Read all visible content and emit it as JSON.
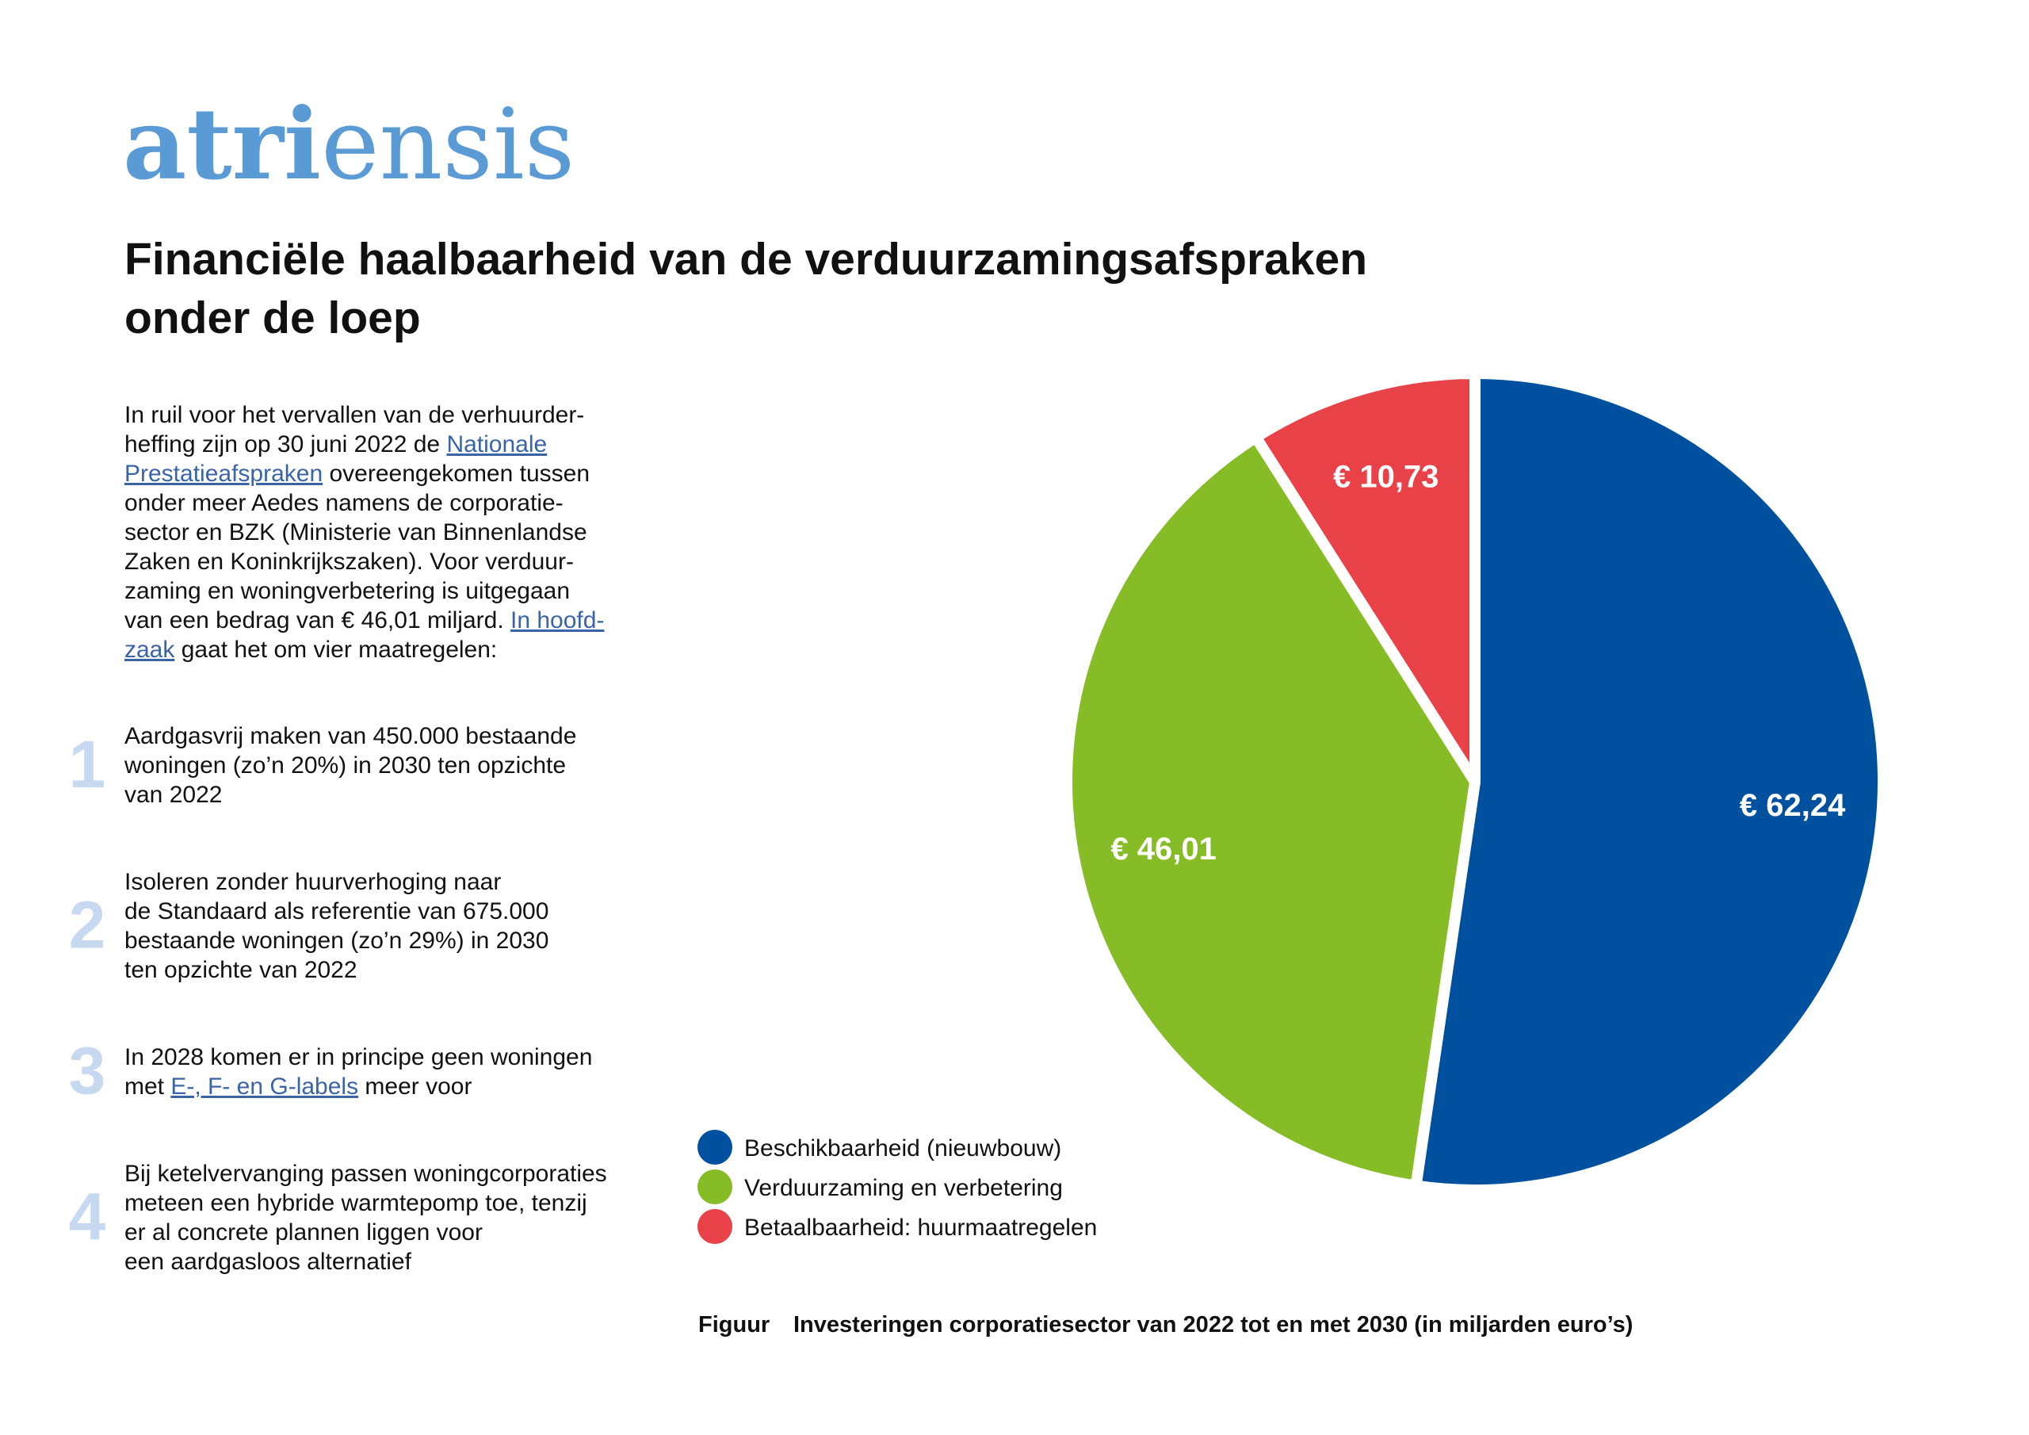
{
  "logo": {
    "bold": "atri",
    "regular": "ensis"
  },
  "title": [
    "Financiële haalbaarheid van de verduurzamingsafspraken",
    "onder de loep"
  ],
  "intro": [
    [
      "In ruil voor het vervallen van de verhuurder-"
    ],
    [
      "heffing zijn op 30 juni 2022 de ",
      {
        "link": "Nationale"
      }
    ],
    [
      {
        "link": "Prestatieafspraken"
      },
      " overeengekomen tussen"
    ],
    [
      "onder meer Aedes namens de corporatie-"
    ],
    [
      "sector en BZK (Ministerie van Binnenlandse"
    ],
    [
      "Zaken en Koninkrijkszaken). Voor verduur-"
    ],
    [
      "zaming en woningverbetering is uitgegaan"
    ],
    [
      "van een bedrag van € 46,01 miljard. ",
      {
        "link": "In hoofd-"
      }
    ],
    [
      {
        "link": "zaak"
      },
      " gaat het om vier maatregelen:"
    ]
  ],
  "items": [
    {
      "number": "1",
      "lines": [
        [
          "Aardgasvrij maken van 450.000 bestaande"
        ],
        [
          "woningen (zo’n 20%) in 2030 ten opzichte"
        ],
        [
          "van 2022"
        ]
      ]
    },
    {
      "number": "2",
      "lines": [
        [
          "Isoleren zonder huurverhoging naar"
        ],
        [
          "de Standaard als referentie van 675.000"
        ],
        [
          "bestaande woningen (zo’n 29%) in 2030"
        ],
        [
          "ten opzichte van 2022"
        ]
      ]
    },
    {
      "number": "3",
      "lines": [
        [
          "In 2028 komen er in principe geen woningen"
        ],
        [
          "met ",
          {
            "link": "E-, F- en G-labels"
          },
          " meer voor"
        ]
      ]
    },
    {
      "number": "4",
      "lines": [
        [
          "Bij ketelvervanging passen woningcorporaties"
        ],
        [
          "meteen een hybride warmtepomp toe, tenzij"
        ],
        [
          "er al concrete plannen liggen voor"
        ],
        [
          "een aardgasloos alternatief"
        ]
      ]
    }
  ],
  "chart_data": {
    "type": "pie",
    "categories": [
      "Beschikbaarheid (nieuwbouw)",
      "Verduurzaming en verbetering",
      "Betaalbaarheid: huurmaatregelen"
    ],
    "values": [
      62.24,
      46.01,
      10.73
    ],
    "value_labels": [
      "€ 62,24",
      "€ 46,01",
      "€ 10,73"
    ],
    "colors": [
      "#0050a0",
      "#86bc25",
      "#e84147"
    ],
    "caption_label": "Figuur",
    "caption": "Investeringen corporatiesector van 2022 tot en met 2030 (in miljarden euro’s)"
  }
}
